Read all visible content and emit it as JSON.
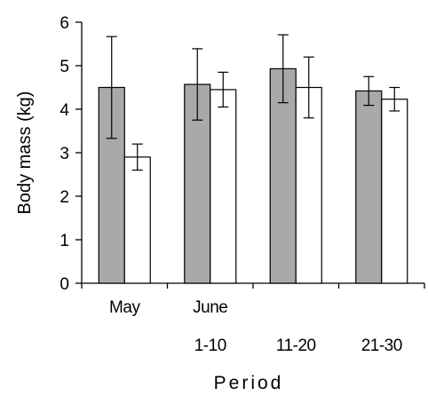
{
  "chart_data": {
    "type": "bar",
    "categories": [
      "May",
      "June 1-10",
      "June 11-20",
      "June 21-30"
    ],
    "category_labels": [
      {
        "line1": "May",
        "line2": ""
      },
      {
        "line1": "June",
        "line2": "1-10"
      },
      {
        "line1": "",
        "line2": "11-20"
      },
      {
        "line1": "",
        "line2": "21-30"
      }
    ],
    "series": [
      {
        "values": [
          4.5,
          4.57,
          4.93,
          4.42
        ],
        "errors": [
          1.17,
          0.82,
          0.78,
          0.33
        ],
        "color": "#a9a9a9"
      },
      {
        "values": [
          2.9,
          4.45,
          4.5,
          4.23
        ],
        "errors": [
          0.3,
          0.4,
          0.7,
          0.27
        ],
        "color": "#ffffff"
      }
    ],
    "title": "",
    "xlabel": "Period",
    "ylabel": "Body mass (kg)",
    "ylim": [
      0,
      6
    ],
    "yticks": [
      0,
      1,
      2,
      3,
      4,
      5,
      6
    ],
    "grid": false,
    "legend": "none"
  }
}
